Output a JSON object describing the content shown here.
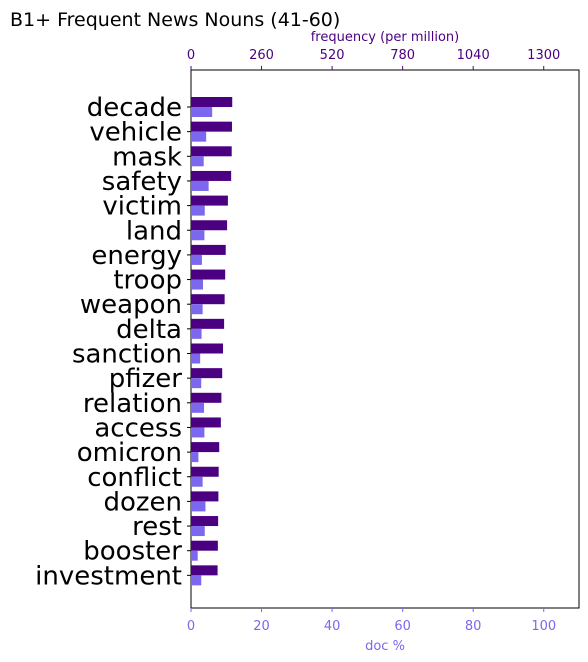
{
  "chart_data": {
    "type": "bar",
    "orientation": "horizontal",
    "title": "B1+ Frequent News Nouns (41-60)",
    "categories": [
      "decade",
      "vehicle",
      "mask",
      "safety",
      "victim",
      "land",
      "energy",
      "troop",
      "weapon",
      "delta",
      "sanction",
      "pfizer",
      "relation",
      "access",
      "omicron",
      "conflict",
      "dozen",
      "rest",
      "booster",
      "investment"
    ],
    "series": [
      {
        "axis": "top",
        "color": "#4b0082",
        "values": [
          152,
          151,
          150,
          148,
          136,
          133,
          128,
          126,
          124,
          122,
          118,
          115,
          112,
          110,
          104,
          102,
          101,
          100,
          99,
          98
        ]
      },
      {
        "axis": "bottom",
        "color": "#7b68ee",
        "values": [
          6.0,
          4.3,
          3.6,
          5.0,
          3.9,
          3.8,
          3.1,
          3.4,
          3.3,
          3.0,
          2.6,
          2.9,
          3.7,
          3.8,
          2.1,
          3.3,
          4.1,
          3.9,
          1.9,
          2.9
        ]
      }
    ],
    "x_top": {
      "label": "frequency (per million)",
      "range": [
        0,
        1430
      ],
      "ticks": [
        0,
        260,
        520,
        780,
        1040,
        1300
      ],
      "color": "#4b0082"
    },
    "x_bottom": {
      "label": "doc %",
      "range": [
        0,
        110
      ],
      "ticks": [
        0,
        20,
        40,
        60,
        80,
        100
      ],
      "color": "#7b68ee"
    },
    "grid": false,
    "legend": "none"
  }
}
